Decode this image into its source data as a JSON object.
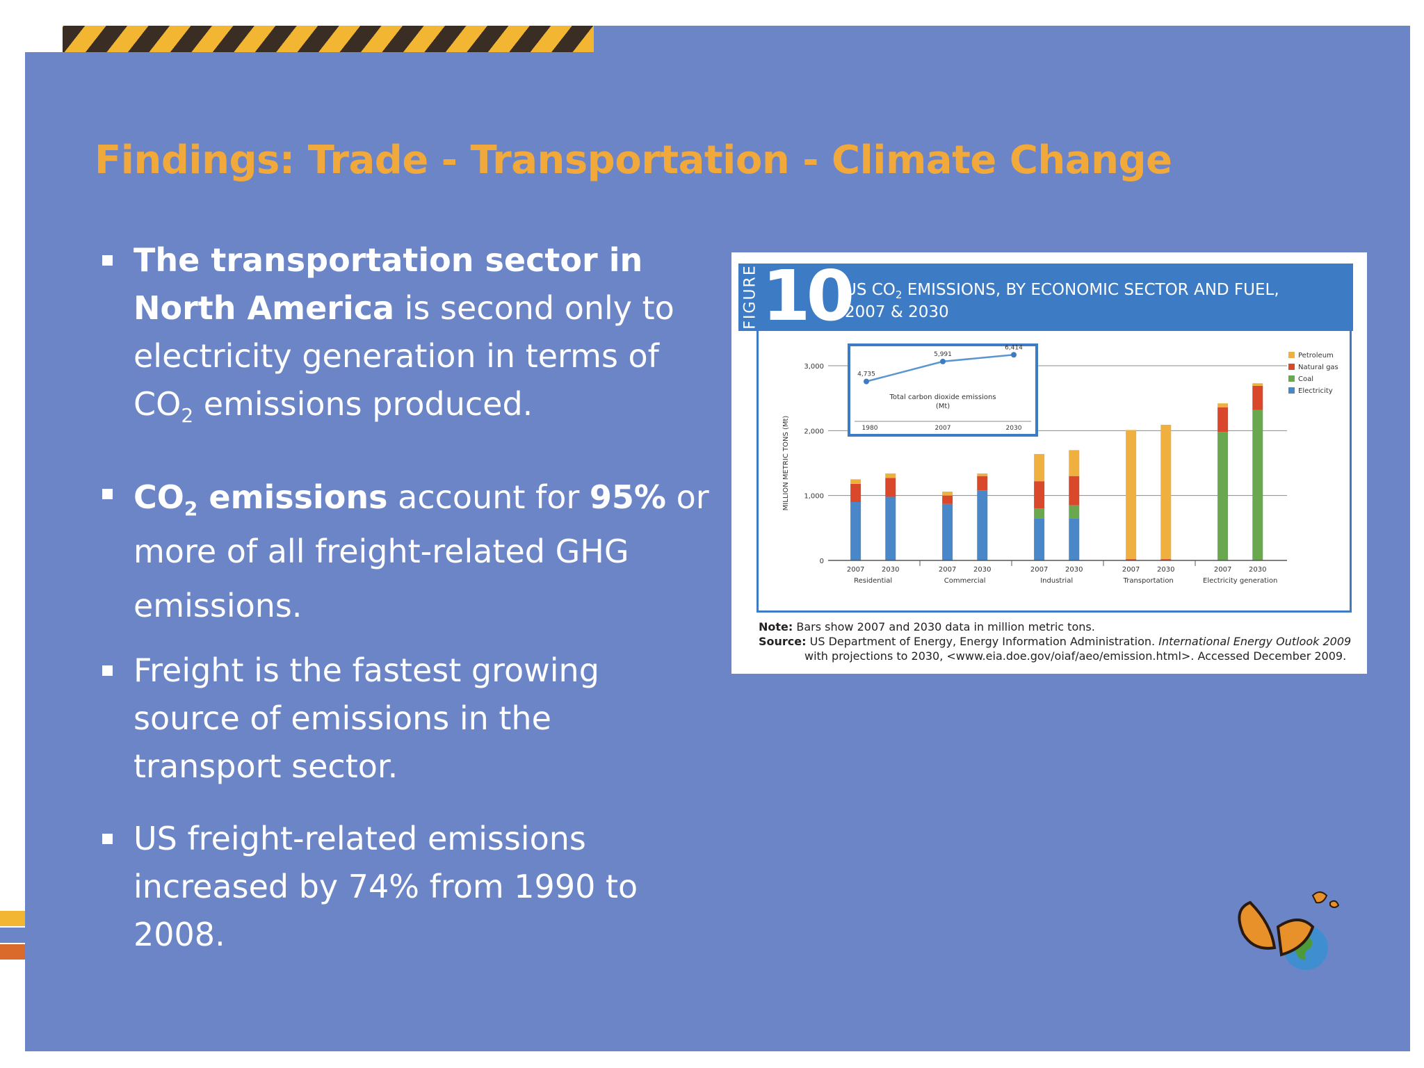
{
  "colors": {
    "background": "#6b85c6",
    "title": "#f2a93b",
    "text": "#ffffff",
    "stripe_yellow": "#f2b632",
    "stripe_dark": "#3a2e24",
    "side_tabs": [
      "#f2b632",
      "#6b85c6",
      "#d96a2b"
    ]
  },
  "slide": {
    "title": "Findings: Trade - Transportation - Climate Change",
    "bullets": [
      {
        "bold_1": "The transportation sector in North America",
        "text_1": " is second only to electricity generation in terms of CO",
        "sub": "2",
        "text_2": " emissions produced."
      },
      {
        "bold_1": "CO",
        "sub": "2",
        "bold_2": " emissions",
        "text_1": " account for ",
        "bold_3": "95%",
        "text_2": " or more of all freight-related GHG emissions."
      },
      {
        "text": "Freight is the fastest growing source of emissions in the transport sector."
      },
      {
        "text": "US freight-related emissions increased by 74% from 1990 to 2008."
      }
    ]
  },
  "figure": {
    "label": "FIGURE",
    "number": "10",
    "title_line1_a": "US CO",
    "title_line1_sub": "2",
    "title_line1_b": " EMISSIONS, BY ECONOMIC SECTOR AND FUEL,",
    "title_line2": "2007 & 2030",
    "note_label": "Note:",
    "note_text": " Bars show 2007 and 2030 data in million metric tons.",
    "source_label": "Source:",
    "source_text_1": " US Department of Energy, Energy Information Administration. ",
    "source_italic": "International Energy Outlook 2009",
    "source_text_2": "with projections to 2030, <www.eia.doe.gov/oiaf/aeo/emission.html>. Accessed December 2009."
  },
  "chart_data": [
    {
      "type": "bar",
      "stacked": true,
      "ylabel": "MILLION METRIC TONS (Mt)",
      "ylim": [
        0,
        3000
      ],
      "yticks": [
        0,
        1000,
        2000,
        3000
      ],
      "ytick_labels": [
        "0",
        "1,000",
        "2,000",
        "3,000"
      ],
      "groups": [
        "Residential",
        "Commercial",
        "Industrial",
        "Transportation",
        "Electricity generation"
      ],
      "years": [
        "2007",
        "2030"
      ],
      "series": [
        {
          "name": "Electricity",
          "color": "#4a87c8",
          "values": [
            [
              900,
              980
            ],
            [
              870,
              1080
            ],
            [
              650,
              650
            ],
            [
              0,
              0
            ],
            [
              0,
              0
            ]
          ]
        },
        {
          "name": "Coal",
          "color": "#6aa84f",
          "values": [
            [
              0,
              0
            ],
            [
              0,
              0
            ],
            [
              150,
              200
            ],
            [
              0,
              0
            ],
            [
              1980,
              2320
            ]
          ]
        },
        {
          "name": "Natural gas",
          "color": "#d9482b",
          "values": [
            [
              280,
              290
            ],
            [
              130,
              220
            ],
            [
              420,
              450
            ],
            [
              20,
              20
            ],
            [
              380,
              370
            ]
          ]
        },
        {
          "name": "Petroleum",
          "color": "#f0b040",
          "values": [
            [
              70,
              70
            ],
            [
              60,
              40
            ],
            [
              420,
              400
            ],
            [
              1990,
              2070
            ],
            [
              60,
              40
            ]
          ]
        }
      ],
      "legend_position": "top-right",
      "grid": true
    },
    {
      "type": "line",
      "title": "Total carbon dioxide emissions",
      "subtitle": "(Mt)",
      "x": [
        "1980",
        "2007",
        "2030"
      ],
      "y": [
        4735,
        5991,
        6414
      ],
      "labels": [
        "4,735",
        "5,991",
        "6,414"
      ]
    }
  ]
}
